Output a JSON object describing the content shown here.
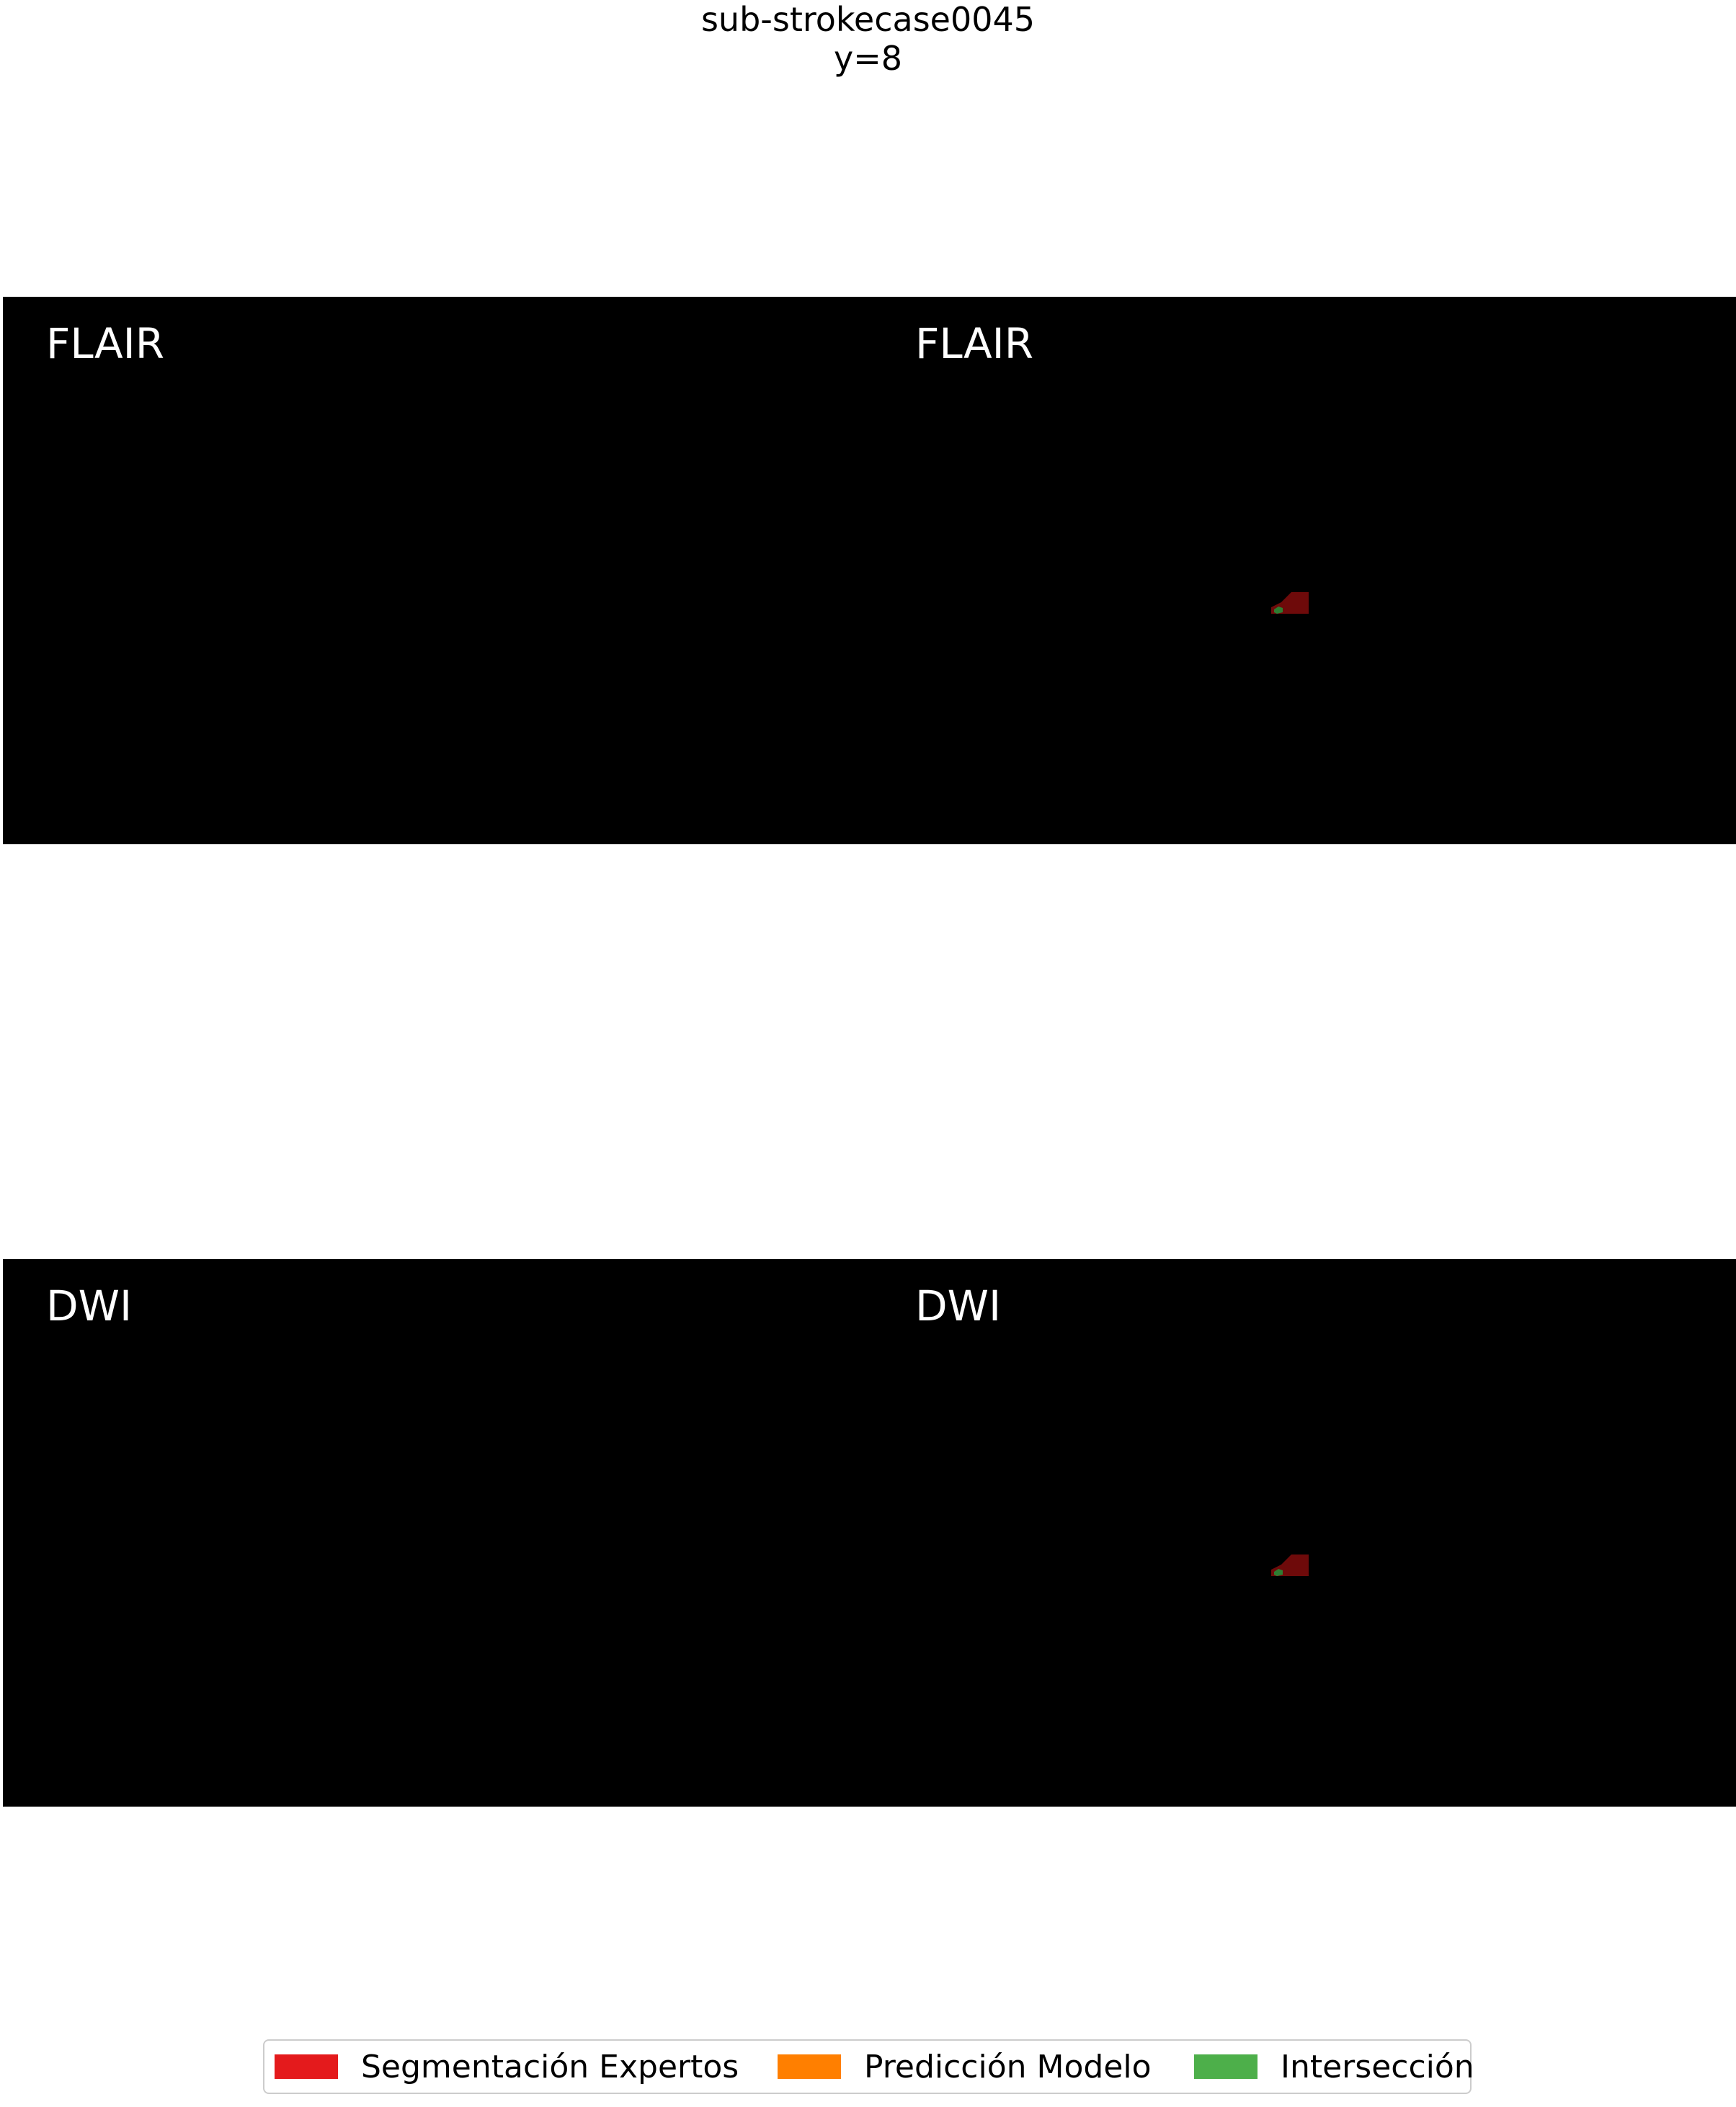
{
  "title": {
    "line1": "sub-strokecase0045",
    "line2": "y=8"
  },
  "rows": [
    {
      "id": "flair",
      "panels": [
        {
          "label": "FLAIR",
          "has_lesion": false
        },
        {
          "label": "FLAIR",
          "has_lesion": true
        }
      ]
    },
    {
      "id": "dwi",
      "panels": [
        {
          "label": "DWI",
          "has_lesion": false
        },
        {
          "label": "DWI",
          "has_lesion": true
        }
      ]
    }
  ],
  "legend": {
    "items": [
      {
        "label": "Segmentación Expertos",
        "color": "#e41a1c"
      },
      {
        "label": "Predicción Modelo",
        "color": "#ff7f00"
      },
      {
        "label": "Intersección",
        "color": "#4daf4a"
      }
    ]
  },
  "colors": {
    "background": "#000000",
    "lesion_overlay": "#6e0a0a",
    "intersection_overlay": "#2e7d32"
  }
}
